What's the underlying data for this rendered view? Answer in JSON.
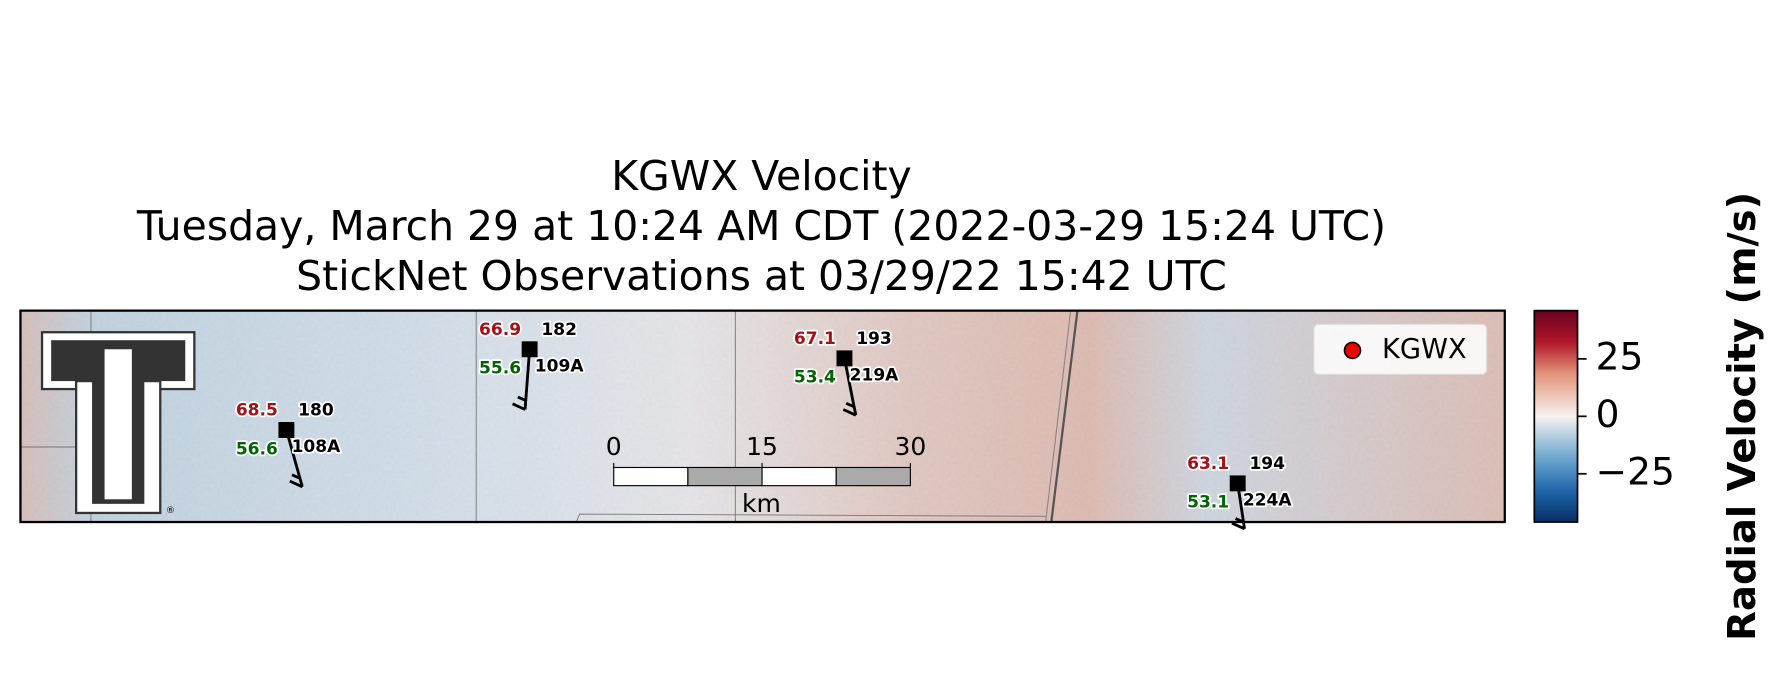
{
  "title": {
    "line1": "KGWX Velocity",
    "line2": "Tuesday, March 29 at 10:24 AM CDT (2022-03-29 15:24 UTC)",
    "line3": "StickNet Observations at 03/29/22 15:42 UTC"
  },
  "stations": [
    {
      "temperature": 68.5,
      "dewpoint": 56.6,
      "number": 180,
      "id": "108A"
    },
    {
      "temperature": 66.9,
      "dewpoint": 55.6,
      "number": 182,
      "id": "109A"
    },
    {
      "temperature": 67.1,
      "dewpoint": 53.4,
      "number": 193,
      "id": "219A"
    },
    {
      "temperature": 63.1,
      "dewpoint": 53.1,
      "number": 194,
      "id": "224A"
    }
  ],
  "legend": {
    "label": "KGWX"
  },
  "scale_bar": {
    "ticks": [
      0,
      15,
      30
    ],
    "unit": "km"
  },
  "colorbar": {
    "label": "Radial Velocity (m/s)",
    "lim": [
      -46,
      46
    ],
    "ticks": [
      25,
      0,
      {
        "value": -25,
        "label": "−25"
      }
    ]
  }
}
